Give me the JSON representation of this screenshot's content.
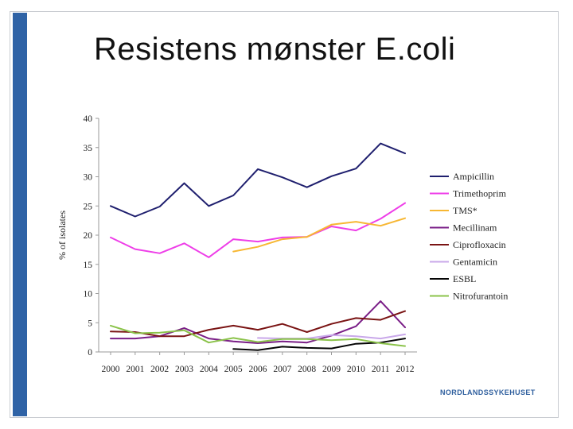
{
  "slide": {
    "title": "Resistens mønster E.coli",
    "logo_text": "NORDLANDSSYKEHUSET"
  },
  "colors": {
    "accent_bar": "#2f63a6",
    "logo": "#2f5f9e",
    "axis": "#9a9a9a"
  },
  "chart_data": {
    "type": "line",
    "title": "",
    "xlabel": "",
    "ylabel": "% of isolates",
    "ylim": [
      0,
      40
    ],
    "yticks": [
      0,
      5,
      10,
      15,
      20,
      25,
      30,
      35,
      40
    ],
    "x": [
      "2000",
      "2001",
      "2002",
      "2003",
      "2004",
      "2005",
      "2006",
      "2007",
      "2008",
      "2009",
      "2010",
      "2011",
      "2012"
    ],
    "legend_position": "right",
    "grid": false,
    "series": [
      {
        "name": "Ampicillin",
        "color": "#1f1f6e",
        "values": [
          25.0,
          23.2,
          24.9,
          28.9,
          25.0,
          26.8,
          31.3,
          29.9,
          28.2,
          30.1,
          31.4,
          35.7,
          34.0
        ]
      },
      {
        "name": "Trimethoprim",
        "color": "#ee3ee8",
        "values": [
          19.6,
          17.6,
          16.9,
          18.6,
          16.2,
          19.3,
          18.9,
          19.6,
          19.7,
          21.5,
          20.8,
          22.8,
          25.5
        ]
      },
      {
        "name": "TMS*",
        "color": "#f7b733",
        "values": [
          null,
          null,
          null,
          null,
          null,
          17.2,
          18.0,
          19.3,
          19.7,
          21.8,
          22.3,
          21.6,
          22.9
        ]
      },
      {
        "name": "Mecillinam",
        "color": "#7a1e87",
        "values": [
          2.3,
          2.3,
          2.7,
          4.1,
          2.3,
          1.8,
          1.5,
          1.8,
          1.6,
          2.8,
          4.4,
          8.7,
          4.2
        ]
      },
      {
        "name": "Ciprofloxacin",
        "color": "#7a1414",
        "values": [
          3.5,
          3.4,
          2.7,
          2.7,
          3.8,
          4.5,
          3.8,
          4.8,
          3.4,
          4.8,
          5.8,
          5.5,
          7.0
        ]
      },
      {
        "name": "Gentamicin",
        "color": "#c9a8ea",
        "values": [
          null,
          null,
          null,
          null,
          null,
          null,
          2.4,
          2.3,
          2.3,
          2.9,
          2.7,
          2.3,
          3.0
        ]
      },
      {
        "name": "ESBL",
        "color": "#050505",
        "values": [
          null,
          null,
          null,
          null,
          null,
          0.5,
          0.3,
          0.9,
          0.7,
          0.6,
          1.4,
          1.6,
          2.3
        ]
      },
      {
        "name": "Nitrofurantoin",
        "color": "#8bc34a",
        "values": [
          4.5,
          3.2,
          3.3,
          3.7,
          1.6,
          2.4,
          1.7,
          2.2,
          2.2,
          2.0,
          2.2,
          1.5,
          1.0
        ]
      }
    ]
  }
}
